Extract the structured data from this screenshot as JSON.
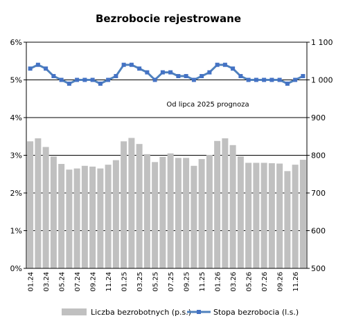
{
  "chart_data": {
    "type": "bar+line",
    "title": "Bezrobocie rejestrowane",
    "annotation": "Od lipca 2025 prognoza",
    "x_labels": [
      "01.24",
      "",
      "03.24",
      "",
      "05.24",
      "",
      "07.24",
      "",
      "09.24",
      "",
      "11.24",
      "",
      "01.25",
      "",
      "03.25",
      "",
      "05.25",
      "",
      "07.25",
      "",
      "09.25",
      "",
      "11.25",
      "",
      "01.26",
      "",
      "03.26",
      "",
      "05.26",
      "",
      "07.26",
      "",
      "09.26",
      "",
      "11.26",
      ""
    ],
    "left_axis": {
      "ticks": [
        "0%",
        "1%",
        "2%",
        "3%",
        "4%",
        "5%",
        "6%"
      ],
      "ylim": [
        0,
        6
      ]
    },
    "right_axis": {
      "ticks": [
        "500",
        "600",
        "700",
        "800",
        "900",
        "1 000",
        "1 100"
      ],
      "ylim": [
        500,
        1100
      ]
    },
    "grid": "horizontal",
    "legend_position": "bottom",
    "series": [
      {
        "name": "Liczba bezrobotnych (p.s.)",
        "type": "bar",
        "axis": "right",
        "color": "#c0c0c0",
        "values": [
          837,
          845,
          822,
          797,
          777,
          762,
          765,
          772,
          770,
          765,
          775,
          787,
          837,
          846,
          830,
          803,
          782,
          796,
          805,
          793,
          793,
          772,
          790,
          801,
          838,
          845,
          827,
          797,
          780,
          780,
          780,
          779,
          778,
          758,
          775,
          788
        ]
      },
      {
        "name": "Stopa bezrobocia (l.s.)",
        "type": "line",
        "axis": "left",
        "color": "#4f81bd",
        "values": [
          5.3,
          5.4,
          5.3,
          5.1,
          5.0,
          4.9,
          5.0,
          5.0,
          5.0,
          4.9,
          5.0,
          5.1,
          5.4,
          5.4,
          5.3,
          5.2,
          5.0,
          5.2,
          5.2,
          5.1,
          5.1,
          5.0,
          5.1,
          5.2,
          5.4,
          5.4,
          5.3,
          5.1,
          5.0,
          5.0,
          5.0,
          5.0,
          5.0,
          4.9,
          5.0,
          5.1
        ]
      }
    ]
  }
}
